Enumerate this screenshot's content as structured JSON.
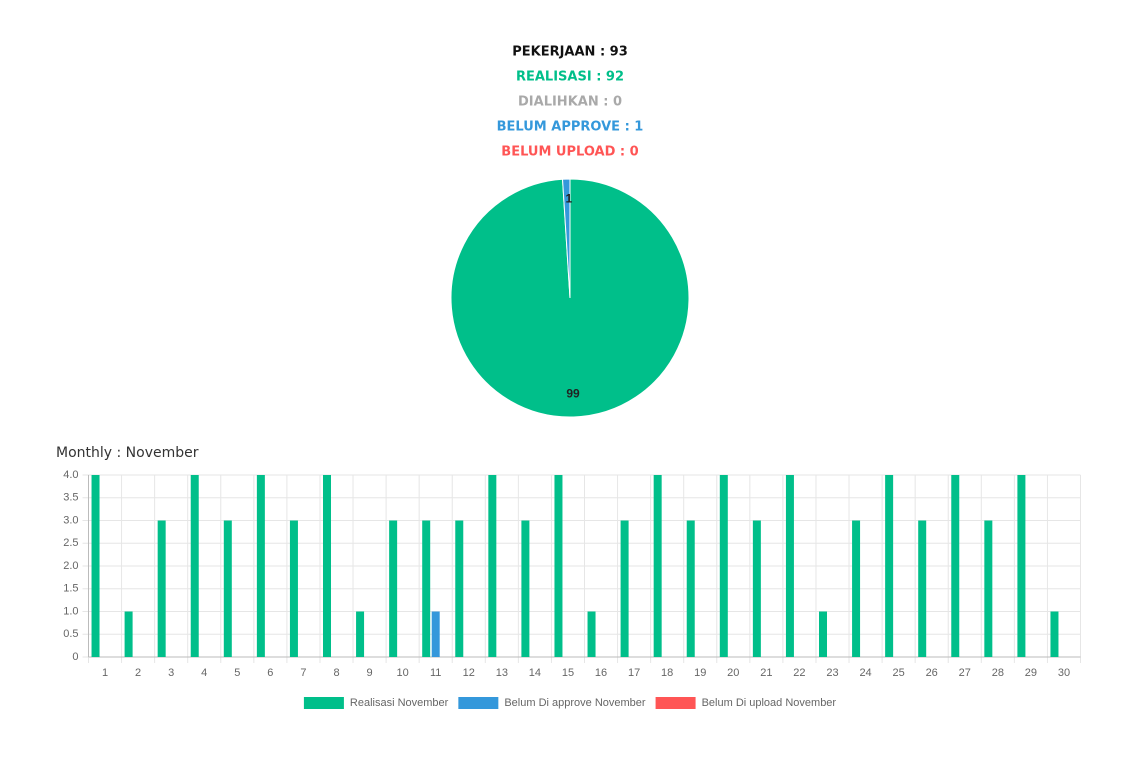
{
  "chart_data": [
    {
      "type": "pie",
      "summary": [
        {
          "text": "PEKERJAAN : 93",
          "color": "#111111"
        },
        {
          "text": "REALISASI : 92",
          "color": "#00bf8a"
        },
        {
          "text": "DIALIHKAN : 0",
          "color": "#a9a9a9"
        },
        {
          "text": "BELUM APPROVE : 1",
          "color": "#3498db"
        },
        {
          "text": "BELUM UPLOAD : 0",
          "color": "#ff5555"
        }
      ],
      "values": [
        99,
        1
      ],
      "colors": [
        "#00bf8a",
        "#3498db"
      ]
    },
    {
      "type": "bar",
      "title": "Monthly : November",
      "categories": [
        "1",
        "2",
        "3",
        "4",
        "5",
        "6",
        "7",
        "8",
        "9",
        "10",
        "11",
        "12",
        "13",
        "14",
        "15",
        "16",
        "17",
        "18",
        "19",
        "20",
        "21",
        "22",
        "23",
        "24",
        "25",
        "26",
        "27",
        "28",
        "29",
        "30"
      ],
      "series": [
        {
          "name": "Realisasi November",
          "color": "#00bf8a",
          "values": [
            4,
            1,
            3,
            4,
            3,
            4,
            3,
            4,
            1,
            3,
            3,
            3,
            4,
            3,
            4,
            1,
            3,
            4,
            3,
            4,
            3,
            4,
            1,
            3,
            4,
            3,
            4,
            3,
            4,
            1
          ]
        },
        {
          "name": "Belum Di approve November",
          "color": "#3498db",
          "values": [
            0,
            0,
            0,
            0,
            0,
            0,
            0,
            0,
            0,
            0,
            1,
            0,
            0,
            0,
            0,
            0,
            0,
            0,
            0,
            0,
            0,
            0,
            0,
            0,
            0,
            0,
            0,
            0,
            0,
            0
          ]
        },
        {
          "name": "Belum Di upload November",
          "color": "#ff5555",
          "values": [
            0,
            0,
            0,
            0,
            0,
            0,
            0,
            0,
            0,
            0,
            0,
            0,
            0,
            0,
            0,
            0,
            0,
            0,
            0,
            0,
            0,
            0,
            0,
            0,
            0,
            0,
            0,
            0,
            0,
            0
          ]
        }
      ],
      "ylim": [
        0,
        4
      ],
      "yticks": [
        0,
        {
          "value": 0.5,
          "label": "0.5"
        },
        {
          "value": 1,
          "label": "1.0"
        },
        {
          "value": 1.5,
          "label": "1.5"
        },
        {
          "value": 2,
          "label": "2.0"
        },
        {
          "value": 2.5,
          "label": "2.5"
        },
        {
          "value": 3,
          "label": "3.0"
        },
        {
          "value": 3.5,
          "label": "3.5"
        },
        {
          "value": 4,
          "label": "4.0"
        }
      ],
      "grid": true
    }
  ]
}
